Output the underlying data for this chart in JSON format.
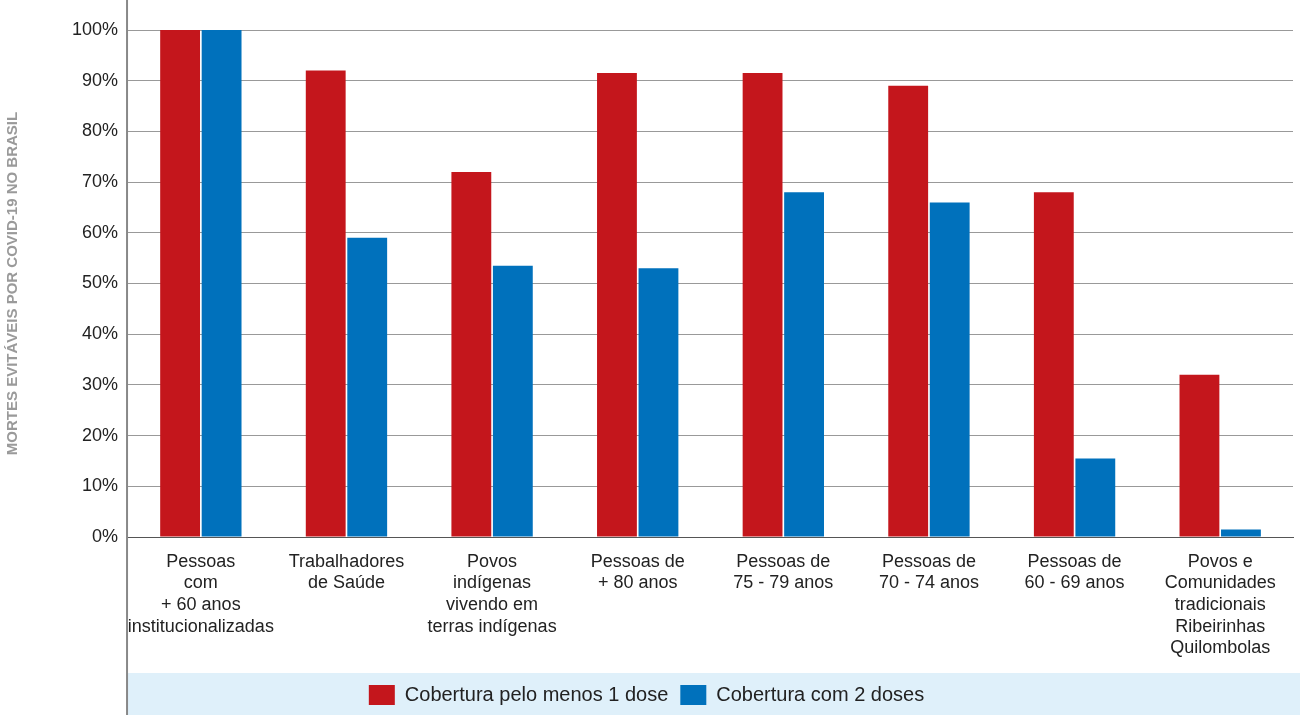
{
  "chart_data": {
    "type": "bar",
    "ylabel": "MORTES EVITÁVEIS POR COVID-19 NO BRASIL",
    "categories": [
      "Pessoas\ncom\n+ 60 anos\ninstitucionalizadas",
      "Trabalhadores\nde Saúde",
      "Povos\nindígenas\nvivendo em\nterras indígenas",
      "Pessoas de\n+ 80 anos",
      "Pessoas de\n75 - 79 anos",
      "Pessoas de\n70 - 74 anos",
      "Pessoas de\n60 - 69 anos",
      "Povos e\nComunidades\ntradicionais\nRibeirinhas\nQuilombolas"
    ],
    "series": [
      {
        "name": "Cobertura pelo menos 1 dose",
        "color": "#c4161c",
        "values": [
          100,
          92,
          72,
          91.5,
          91.5,
          89,
          68,
          32
        ]
      },
      {
        "name": "Cobertura com 2 doses",
        "color": "#0071bc",
        "values": [
          100,
          59,
          53.5,
          53,
          68,
          66,
          15.5,
          1.5
        ]
      }
    ],
    "ylim": [
      0,
      100
    ],
    "yticks": [
      {
        "value": 0,
        "label": "0%"
      },
      {
        "value": 10,
        "label": "10%"
      },
      {
        "value": 20,
        "label": "20%"
      },
      {
        "value": 30,
        "label": "30%"
      },
      {
        "value": 40,
        "label": "40%"
      },
      {
        "value": 50,
        "label": "50%"
      },
      {
        "value": 60,
        "label": "60%"
      },
      {
        "value": 70,
        "label": "70%"
      },
      {
        "value": 80,
        "label": "80%"
      },
      {
        "value": 90,
        "label": "90%"
      },
      {
        "value": 100,
        "label": "100%"
      }
    ],
    "grid": "y",
    "legend": "bottom"
  }
}
